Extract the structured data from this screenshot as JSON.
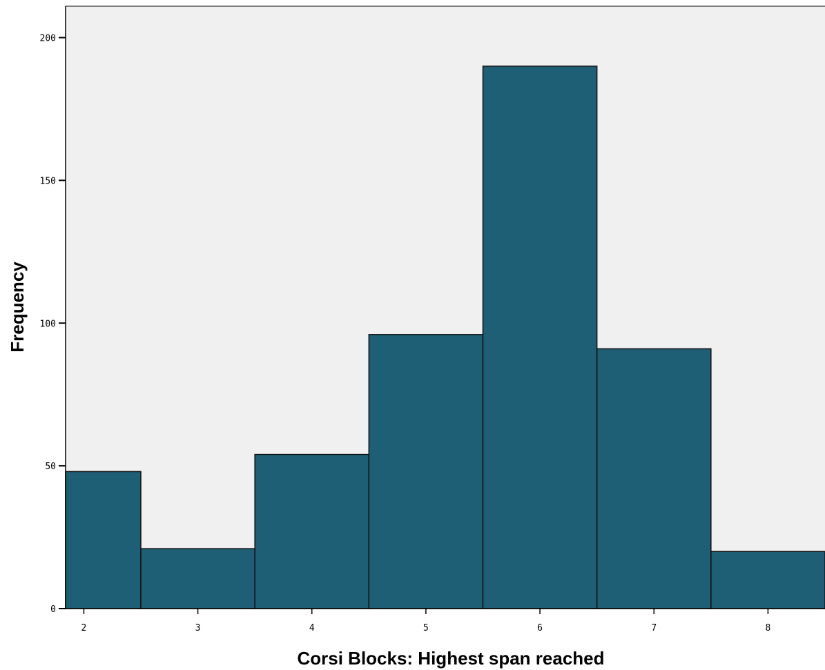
{
  "chart_data": {
    "type": "bar",
    "title": "",
    "xlabel": "Corsi Blocks:  Highest span reached",
    "ylabel": "Frequency",
    "x": [
      2,
      3,
      4,
      5,
      6,
      7,
      8
    ],
    "bin_edges": [
      1.5,
      2.5,
      3.5,
      4.5,
      5.5,
      6.5,
      7.5,
      8.5
    ],
    "values": [
      48,
      21,
      54,
      96,
      190,
      91,
      20
    ],
    "x_ticks": [
      2,
      3,
      4,
      5,
      6,
      7,
      8
    ],
    "y_ticks": [
      0,
      50,
      100,
      150,
      200
    ],
    "xlim": [
      1.84,
      8.5
    ],
    "ylim": [
      0,
      211
    ],
    "grid": false,
    "legend": "none",
    "colors": {
      "plot_background": "#f0f0f0",
      "bar_fill": "#1f5f75",
      "bar_stroke": "#111111",
      "axis": "#000000"
    }
  }
}
